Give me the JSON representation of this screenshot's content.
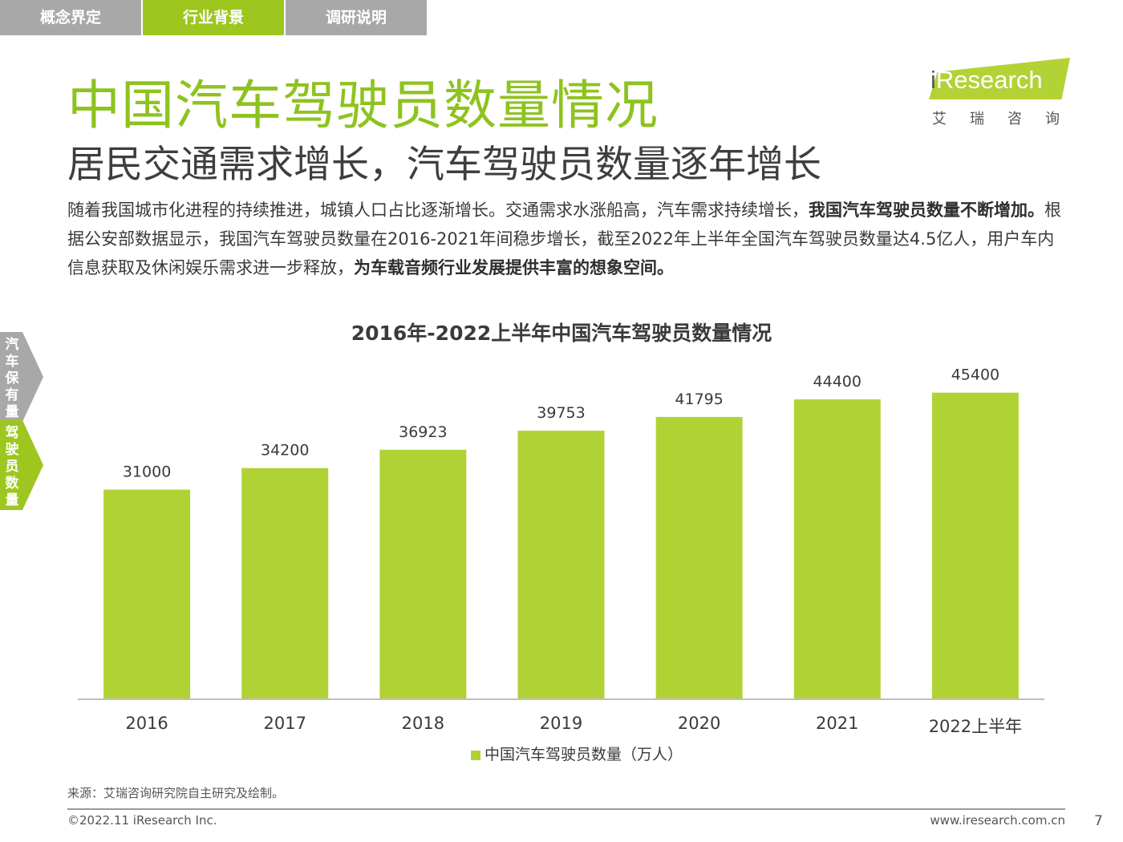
{
  "tabs": [
    "概念界定",
    "行业背景",
    "调研说明"
  ],
  "active_tab": 1,
  "page_title": "中国汽车驾驶员数量情况",
  "page_subtitle": "居民交通需求增长，汽车驾驶员数量逐年增长",
  "logo": {
    "word_i": "i",
    "word_rest": "Research",
    "cn": "艾瑞咨询"
  },
  "paragraph": {
    "p1": "随着我国城市化进程的持续推进，城镇人口占比逐渐增长。交通需求水涨船高，汽车需求持续增长，",
    "b1": "我国汽车驾驶员数量不断增加。",
    "p2": "根据公安部数据显示，我国汽车驾驶员数量在2016-2021年间稳步增长，截至2022年上半年全国汽车驾驶员数量达4.5亿人，用户车内信息获取及休闲娱乐需求进一步释放，",
    "b2": "为车载音频行业发展提供丰富的想象空间。"
  },
  "side_tabs": [
    {
      "label": "汽车保有量",
      "active": false
    },
    {
      "label": "驾驶员数量",
      "active": true
    }
  ],
  "colors": {
    "accent": "#9dc61f",
    "bar": "#b1d235",
    "title": "#8ec31f",
    "inactive": "#a8a8a8"
  },
  "chart_data": {
    "type": "bar",
    "title": "2016年-2022上半年中国汽车驾驶员数量情况",
    "categories": [
      "2016",
      "2017",
      "2018",
      "2019",
      "2020",
      "2021",
      "2022上半年"
    ],
    "series": [
      {
        "name": "中国汽车驾驶员数量（万人）",
        "values": [
          31000,
          34200,
          36923,
          39753,
          41795,
          44400,
          45400
        ]
      }
    ],
    "ylim": [
      0,
      55000
    ],
    "grid": false,
    "legend_position": "bottom"
  },
  "source": "来源：艾瑞咨询研究院自主研究及绘制。",
  "footer": {
    "copyright": "©2022.11 iResearch Inc.",
    "url": "www.iresearch.com.cn",
    "page": "7"
  }
}
